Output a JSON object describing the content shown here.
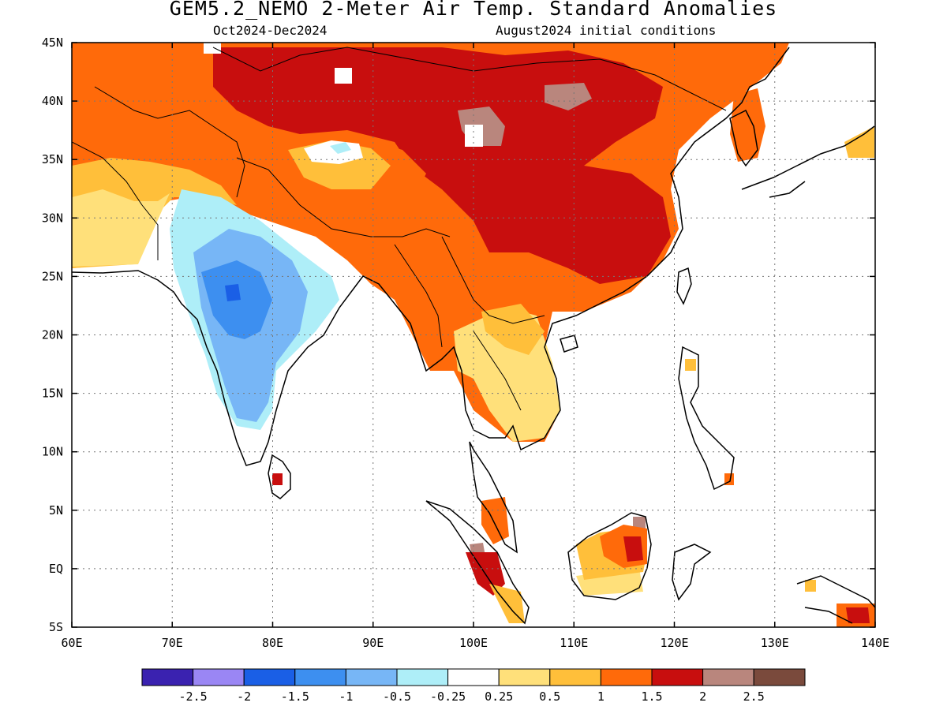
{
  "title": "GEM5.2_NEMO 2-Meter Air Temp. Standard Anomalies",
  "period": "Oct2024-Dec2024",
  "init": "August2024 initial conditions",
  "map": {
    "lon_range": [
      60,
      140
    ],
    "lat_range": [
      -5,
      45
    ],
    "grid": "dotted",
    "lon_ticks": [
      {
        "value": 60,
        "label": "60E"
      },
      {
        "value": 70,
        "label": "70E"
      },
      {
        "value": 80,
        "label": "80E"
      },
      {
        "value": 90,
        "label": "90E"
      },
      {
        "value": 100,
        "label": "100E"
      },
      {
        "value": 110,
        "label": "110E"
      },
      {
        "value": 120,
        "label": "120E"
      },
      {
        "value": 130,
        "label": "130E"
      },
      {
        "value": 140,
        "label": "140E"
      }
    ],
    "lat_ticks": [
      {
        "value": 45,
        "label": "45N"
      },
      {
        "value": 40,
        "label": "40N"
      },
      {
        "value": 35,
        "label": "35N"
      },
      {
        "value": 30,
        "label": "30N"
      },
      {
        "value": 25,
        "label": "25N"
      },
      {
        "value": 20,
        "label": "20N"
      },
      {
        "value": 15,
        "label": "15N"
      },
      {
        "value": 10,
        "label": "10N"
      },
      {
        "value": 5,
        "label": "5N"
      },
      {
        "value": 0,
        "label": "EQ"
      },
      {
        "value": -5,
        "label": "5S"
      }
    ]
  },
  "colorbar": {
    "colors": [
      "#3a22b0",
      "#9a86f4",
      "#1a5fe6",
      "#3d8ff0",
      "#77b6f6",
      "#aeeef8",
      "#ffffff",
      "#ffe07a",
      "#ffbf3a",
      "#ff6a0a",
      "#c80e0e",
      "#b9867d",
      "#7a4a3c"
    ],
    "labels": [
      "-2.5",
      "-2",
      "-1.5",
      "-1",
      "-0.5",
      "-0.25",
      "0.25",
      "0.5",
      "1",
      "1.5",
      "2",
      "2.5"
    ]
  },
  "chart_data": {
    "type": "heatmap",
    "title": "GEM5.2_NEMO 2-Meter Air Temp. Standard Anomalies",
    "subtitle": "Oct2024-Dec2024    August2024 initial conditions",
    "x_range": [
      60,
      140
    ],
    "y_range": [
      -5,
      45
    ],
    "regions": [
      {
        "lon": [
          60,
          98
        ],
        "lat": [
          37,
          45
        ],
        "value": 1.3
      },
      {
        "lon": [
          98,
          126
        ],
        "lat": [
          37,
          45
        ],
        "value": 1.6
      },
      {
        "lon": [
          60,
          68
        ],
        "lat": [
          25,
          37
        ],
        "value": 0.7
      },
      {
        "lon": [
          68,
          88
        ],
        "lat": [
          30,
          37
        ],
        "value": 1.2
      },
      {
        "lon": [
          78,
          96
        ],
        "lat": [
          27,
          34
        ],
        "value": 1.7
      },
      {
        "lon": [
          96,
          121
        ],
        "lat": [
          22,
          37
        ],
        "value": 1.7
      },
      {
        "lon": [
          102,
          118
        ],
        "lat": [
          37,
          43
        ],
        "value": 2.1
      },
      {
        "lon": [
          70,
          86
        ],
        "lat": [
          9,
          28
        ],
        "value": -0.6
      },
      {
        "lon": [
          73,
          82
        ],
        "lat": [
          14,
          26
        ],
        "value": -1.2
      },
      {
        "lon": [
          75,
          77
        ],
        "lat": [
          22,
          24
        ],
        "value": -1.7
      },
      {
        "lon": [
          92,
          100
        ],
        "lat": [
          16,
          26
        ],
        "value": 1.1
      },
      {
        "lon": [
          100,
          108
        ],
        "lat": [
          14,
          21
        ],
        "value": 0.5
      },
      {
        "lon": [
          100,
          104
        ],
        "lat": [
          -3,
          5
        ],
        "value": 1.5
      },
      {
        "lon": [
          111,
          117
        ],
        "lat": [
          0,
          5
        ],
        "value": 1.2
      },
      {
        "lon": [
          136,
          140
        ],
        "lat": [
          -5,
          -3
        ],
        "value": 1.6
      }
    ]
  }
}
